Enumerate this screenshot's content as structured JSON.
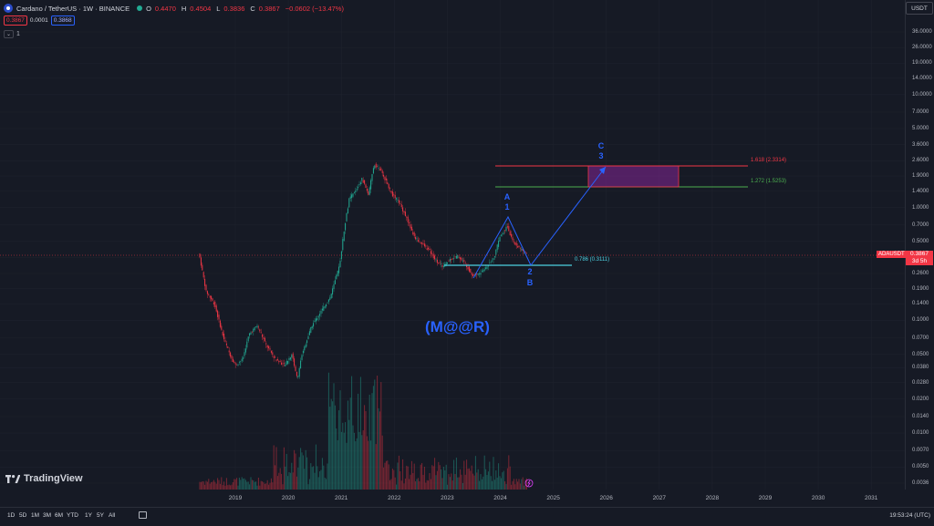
{
  "header": {
    "title": "Cardano / TetherUS · 1W · BINANCE",
    "o_label": "O",
    "o_value": "0.4470",
    "h_label": "H",
    "h_value": "0.4504",
    "l_label": "L",
    "l_value": "0.3836",
    "c_label": "C",
    "c_value": "0.3867",
    "change": "−0.0602 (−13.47%)"
  },
  "quote": {
    "bid": "0.3867",
    "spread": "0.0001",
    "ask": "0.3868"
  },
  "indicator_count": "1",
  "currency": "USDT",
  "price_scale": [
    "36.0000",
    "26.0000",
    "19.0000",
    "14.0000",
    "10.0000",
    "7.0000",
    "5.0000",
    "3.6000",
    "2.6000",
    "1.9000",
    "1.4000",
    "1.0000",
    "0.7000",
    "0.5000",
    "0.3600",
    "0.2600",
    "0.1900",
    "0.1400",
    "0.1000",
    "0.0700",
    "0.0500",
    "0.0380",
    "0.0280",
    "0.0200",
    "0.0140",
    "0.0100",
    "0.0070",
    "0.0050",
    "0.0036"
  ],
  "symbol_tag": "ADAUSDT",
  "last_price": "0.3867",
  "countdown": "3d 5h",
  "years": [
    "2019",
    "2020",
    "2021",
    "2022",
    "2023",
    "2024",
    "2025",
    "2026",
    "2027",
    "2028",
    "2029",
    "2030",
    "2031"
  ],
  "fib_levels": [
    {
      "label": "1.618 (2.3314)",
      "color": "#f23645"
    },
    {
      "label": "1.272 (1.5253)",
      "color": "#4caf50"
    },
    {
      "label": "0.786 (0.3111)",
      "color": "#4dd0e1"
    }
  ],
  "wave_labels": {
    "a": "A",
    "a_num": "1",
    "b": "B",
    "b_num": "2",
    "c": "C",
    "c_num": "3"
  },
  "watermark": "(M@@R)",
  "brand": "TradingView",
  "ranges": [
    "1D",
    "5D",
    "1M",
    "3M",
    "6M",
    "YTD",
    "1Y",
    "5Y",
    "All"
  ],
  "clock": "19:53:24 (UTC)",
  "colors": {
    "up": "#22ab94",
    "down": "#f23645",
    "accent": "#2962ff",
    "zone": "#9c27b0"
  }
}
